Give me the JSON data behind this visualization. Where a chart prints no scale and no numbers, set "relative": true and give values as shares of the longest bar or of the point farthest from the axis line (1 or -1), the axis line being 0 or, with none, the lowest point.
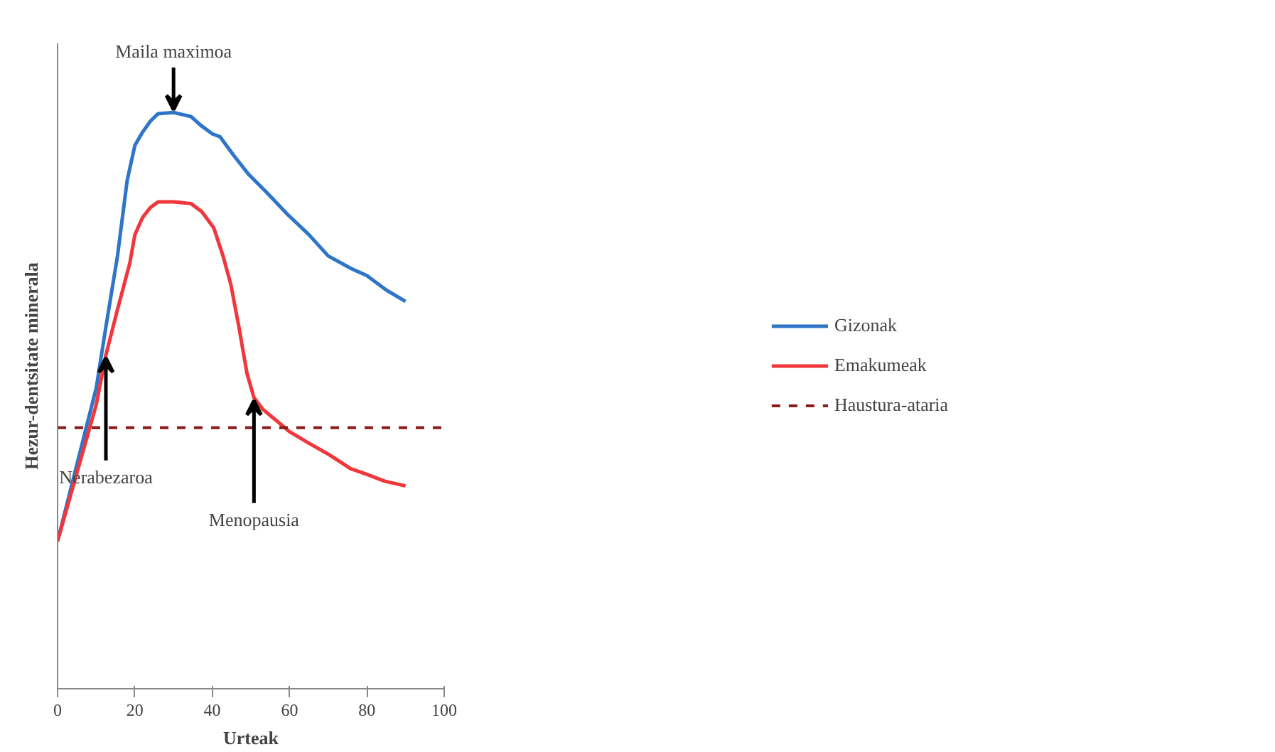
{
  "chart_data": {
    "type": "line",
    "relative": true,
    "xlabel": "Urteak",
    "ylabel": "Hezur-dentsitate minerala",
    "xlim": [
      0,
      100
    ],
    "xticks": [
      0,
      20,
      40,
      60,
      80,
      100
    ],
    "grid": false,
    "legend": "right",
    "line_style": "solid",
    "marker": "none",
    "series": [
      {
        "name": "Gizonak",
        "color": "#2e75c8",
        "x": [
          0,
          10,
          12.5,
          15.5,
          18,
          20,
          22,
          24,
          26,
          30,
          34.5,
          37,
          40,
          42,
          45.5,
          49.5,
          54,
          59.5,
          65,
          70,
          76,
          80,
          85,
          90
        ],
        "values": [
          0.256,
          0.522,
          0.628,
          0.751,
          0.882,
          0.943,
          0.966,
          0.985,
          0.998,
          1.0,
          0.993,
          0.978,
          0.963,
          0.958,
          0.926,
          0.892,
          0.862,
          0.823,
          0.788,
          0.751,
          0.729,
          0.717,
          0.692,
          0.672
        ]
      },
      {
        "name": "Emakumeak",
        "color": "#f0373c",
        "x": [
          0,
          10,
          12.5,
          15.3,
          18.7,
          20,
          22,
          24,
          26,
          30,
          34.5,
          37.3,
          40.4,
          42.8,
          44.8,
          46.9,
          49,
          50.8,
          53.1,
          56.5,
          60,
          64.8,
          70.3,
          75.8,
          80,
          84.7,
          90
        ],
        "values": [
          0.256,
          0.493,
          0.579,
          0.653,
          0.739,
          0.788,
          0.818,
          0.835,
          0.845,
          0.845,
          0.842,
          0.828,
          0.8,
          0.751,
          0.702,
          0.628,
          0.547,
          0.505,
          0.485,
          0.466,
          0.446,
          0.427,
          0.406,
          0.382,
          0.372,
          0.36,
          0.352
        ]
      }
    ],
    "ref_lines": [
      {
        "axis": "y",
        "value": 0.453,
        "label": "Haustura-ataria",
        "color": "#8b1a1a",
        "line_style": "dashed"
      }
    ],
    "annotations": [
      {
        "text": "Maila maximoa",
        "x": 30,
        "y": 1.0
      },
      {
        "text": "Nerabezaroa",
        "x": 12.5,
        "y": 0.579
      },
      {
        "text": "Menopausia",
        "x": 50.8,
        "y": 0.505
      }
    ]
  }
}
